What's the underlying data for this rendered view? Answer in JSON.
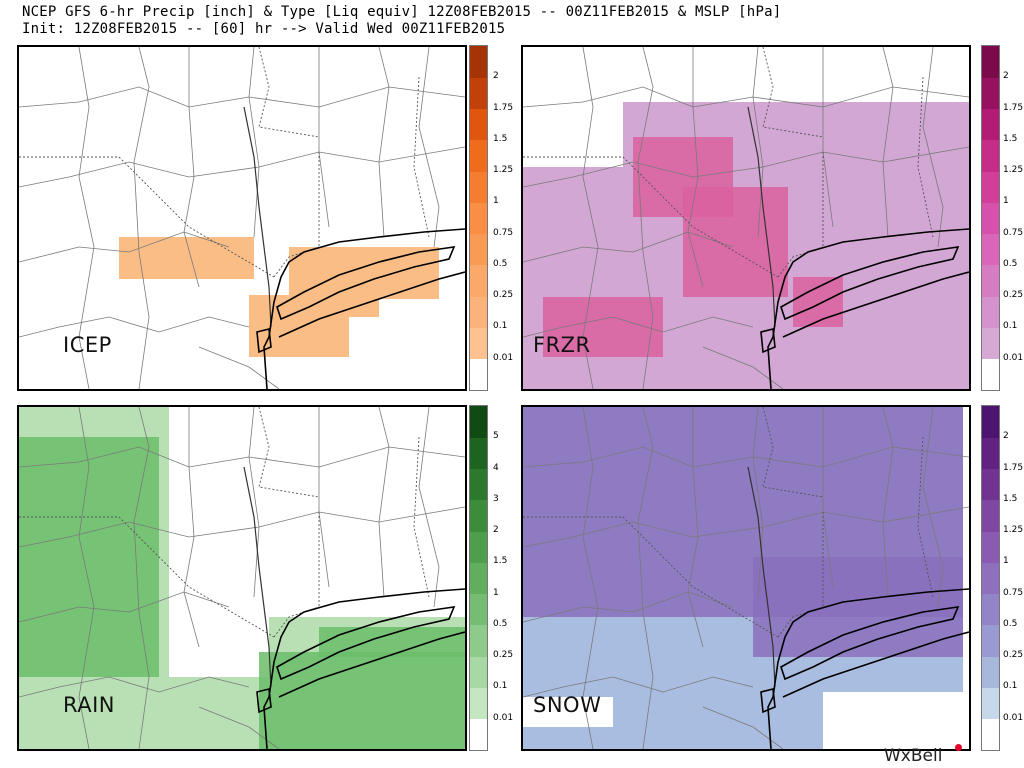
{
  "header": {
    "line1": "NCEP GFS 6-hr Precip [inch] & Type [Liq equiv] 12Z08FEB2015 -- 00Z11FEB2015 & MSLP [hPa]",
    "line2": "Init: 12Z08FEB2015 -- [60] hr --> Valid Wed 00Z11FEB2015"
  },
  "credit": "WxBell",
  "panels": [
    {
      "id": "icep",
      "label": "ICEP",
      "colorbar": {
        "ticks": [
          "0.01",
          "0.1",
          "0.25",
          "0.5",
          "0.75",
          "1",
          "1.25",
          "1.5",
          "1.75",
          "2"
        ],
        "colors": [
          "#ffffff",
          "#fdc28f",
          "#fcb27b",
          "#fba86b",
          "#f99a55",
          "#f98e44",
          "#f57d2f",
          "#ee6c1c",
          "#e0560f",
          "#c2410b",
          "#a63306"
        ]
      },
      "fill_color": "#fbbd86",
      "shapes": [
        {
          "x": [
            100,
            235
          ],
          "y": [
            190,
            232
          ]
        },
        {
          "x": [
            270,
            420
          ],
          "y": [
            200,
            252
          ]
        },
        {
          "x": [
            230,
            330
          ],
          "y": [
            248,
            310
          ]
        },
        {
          "x": [
            290,
            360
          ],
          "y": [
            228,
            270
          ]
        }
      ]
    },
    {
      "id": "frzr",
      "label": "FRZR",
      "colorbar": {
        "ticks": [
          "0.01",
          "0.1",
          "0.25",
          "0.5",
          "0.75",
          "1",
          "1.25",
          "1.5",
          "1.75",
          "2"
        ],
        "colors": [
          "#ffffff",
          "#d6a8d4",
          "#d493cc",
          "#d67cc2",
          "#d966b9",
          "#d651ab",
          "#d13f9b",
          "#c62d88",
          "#b21c74",
          "#961160",
          "#7a0a4a"
        ]
      },
      "fill_color": "#d3a7d3",
      "accent_color": "#d9609f",
      "shapes": [
        {
          "x": [
            0,
            225
          ],
          "y": [
            120,
            350
          ]
        },
        {
          "x": [
            100,
            450
          ],
          "y": [
            55,
            200
          ]
        },
        {
          "x": [
            210,
            450
          ],
          "y": [
            190,
            330
          ]
        },
        {
          "x": [
            0,
            450
          ],
          "y": [
            280,
            350
          ]
        }
      ],
      "accent_shapes": [
        {
          "x": [
            110,
            210
          ],
          "y": [
            90,
            170
          ]
        },
        {
          "x": [
            160,
            265
          ],
          "y": [
            140,
            250
          ]
        },
        {
          "x": [
            20,
            140
          ],
          "y": [
            250,
            310
          ]
        },
        {
          "x": [
            270,
            320
          ],
          "y": [
            230,
            280
          ]
        }
      ]
    },
    {
      "id": "rain",
      "label": "RAIN",
      "colorbar": {
        "ticks": [
          "0.01",
          "0.1",
          "0.25",
          "0.5",
          "1",
          "1.5",
          "2",
          "3",
          "4",
          "5"
        ],
        "colors": [
          "#ffffff",
          "#c4e6c1",
          "#a8d9a4",
          "#8ecb8a",
          "#76bd73",
          "#61ae5e",
          "#4e9e4c",
          "#3d8c3c",
          "#2c792d",
          "#1d6420",
          "#0f4b13"
        ]
      },
      "fill_color": "#b9e0b5",
      "accent_color": "#6bbd6a",
      "shapes": [
        {
          "x": [
            0,
            150
          ],
          "y": [
            0,
            345
          ]
        },
        {
          "x": [
            0,
            450
          ],
          "y": [
            270,
            345
          ]
        },
        {
          "x": [
            250,
            450
          ],
          "y": [
            210,
            290
          ]
        }
      ],
      "accent_shapes": [
        {
          "x": [
            0,
            140
          ],
          "y": [
            30,
            270
          ]
        },
        {
          "x": [
            240,
            450
          ],
          "y": [
            245,
            345
          ]
        },
        {
          "x": [
            300,
            450
          ],
          "y": [
            220,
            250
          ]
        }
      ]
    },
    {
      "id": "snow",
      "label": "SNOW",
      "colorbar": {
        "ticks": [
          "0.01",
          "0.1",
          "0.25",
          "0.5",
          "0.75",
          "1",
          "1.25",
          "1.5",
          "1.75",
          "2"
        ],
        "colors": [
          "#ffffff",
          "#c6d8ea",
          "#a8b8dc",
          "#9a9ad2",
          "#9384c7",
          "#8e70bc",
          "#8a5bb0",
          "#7f46a2",
          "#713392",
          "#612282",
          "#4e1570"
        ]
      },
      "fill_color": "#a9bde0",
      "accent_color": "#8a70bc",
      "shapes": [
        {
          "x": [
            0,
            440
          ],
          "y": [
            0,
            345
          ]
        }
      ],
      "accent_shapes": [
        {
          "x": [
            0,
            440
          ],
          "y": [
            0,
            210
          ]
        },
        {
          "x": [
            230,
            440
          ],
          "y": [
            150,
            250
          ]
        }
      ],
      "blank_shapes": [
        {
          "x": [
            300,
            450
          ],
          "y": [
            285,
            345
          ]
        },
        {
          "x": [
            0,
            90
          ],
          "y": [
            290,
            320
          ]
        }
      ]
    }
  ]
}
